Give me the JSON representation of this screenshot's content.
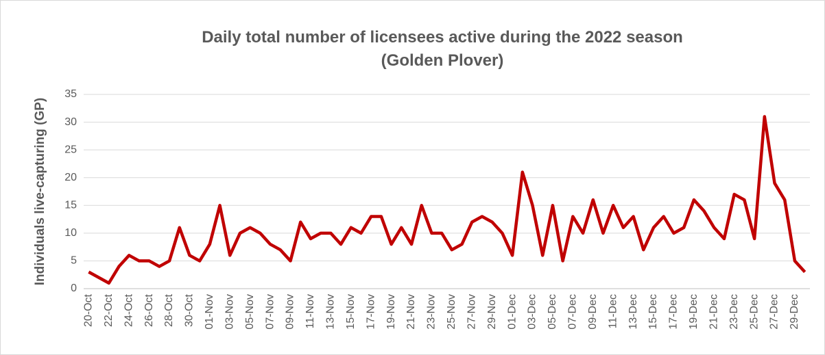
{
  "chart_data": {
    "type": "line",
    "title": "Daily total number of licensees active during the 2022 season",
    "subtitle": "(Golden Plover)",
    "y_label": "Individuals live-capturing (GP)",
    "categories": [
      "20-Oct",
      null,
      "22-Oct",
      null,
      "24-Oct",
      null,
      "26-Oct",
      null,
      "28-Oct",
      null,
      "30-Oct",
      null,
      "01-Nov",
      null,
      "03-Nov",
      null,
      "05-Nov",
      null,
      "07-Nov",
      null,
      "09-Nov",
      null,
      "11-Nov",
      null,
      "13-Nov",
      null,
      "15-Nov",
      null,
      "17-Nov",
      null,
      "19-Nov",
      null,
      "21-Nov",
      null,
      "23-Nov",
      null,
      "25-Nov",
      null,
      "27-Nov",
      null,
      "29-Nov",
      null,
      "01-Dec",
      null,
      "03-Dec",
      null,
      "05-Dec",
      null,
      "07-Dec",
      null,
      "09-Dec",
      null,
      "11-Dec",
      null,
      "13-Dec",
      null,
      "15-Dec",
      null,
      "17-Dec",
      null,
      "19-Dec",
      null,
      "21-Dec",
      null,
      "23-Dec",
      null,
      "25-Dec",
      null,
      "27-Dec",
      null,
      "29-Dec",
      null
    ],
    "series": [
      {
        "name": "Golden Plover",
        "color": "#c00000",
        "values": [
          3,
          2,
          1,
          4,
          6,
          5,
          5,
          4,
          5,
          11,
          6,
          5,
          8,
          15,
          6,
          10,
          11,
          10,
          8,
          7,
          5,
          12,
          9,
          10,
          10,
          8,
          11,
          10,
          13,
          13,
          8,
          11,
          8,
          15,
          10,
          10,
          7,
          8,
          12,
          13,
          12,
          10,
          6,
          21,
          15,
          6,
          15,
          5,
          13,
          10,
          16,
          10,
          15,
          11,
          13,
          7,
          11,
          13,
          10,
          11,
          16,
          14,
          11,
          9,
          17,
          16,
          9,
          31,
          19,
          16,
          5,
          3
        ]
      }
    ],
    "ylim": [
      0,
      35
    ],
    "yticks": [
      0,
      5,
      10,
      15,
      20,
      25,
      30,
      35
    ],
    "grid": true,
    "legend": false
  }
}
